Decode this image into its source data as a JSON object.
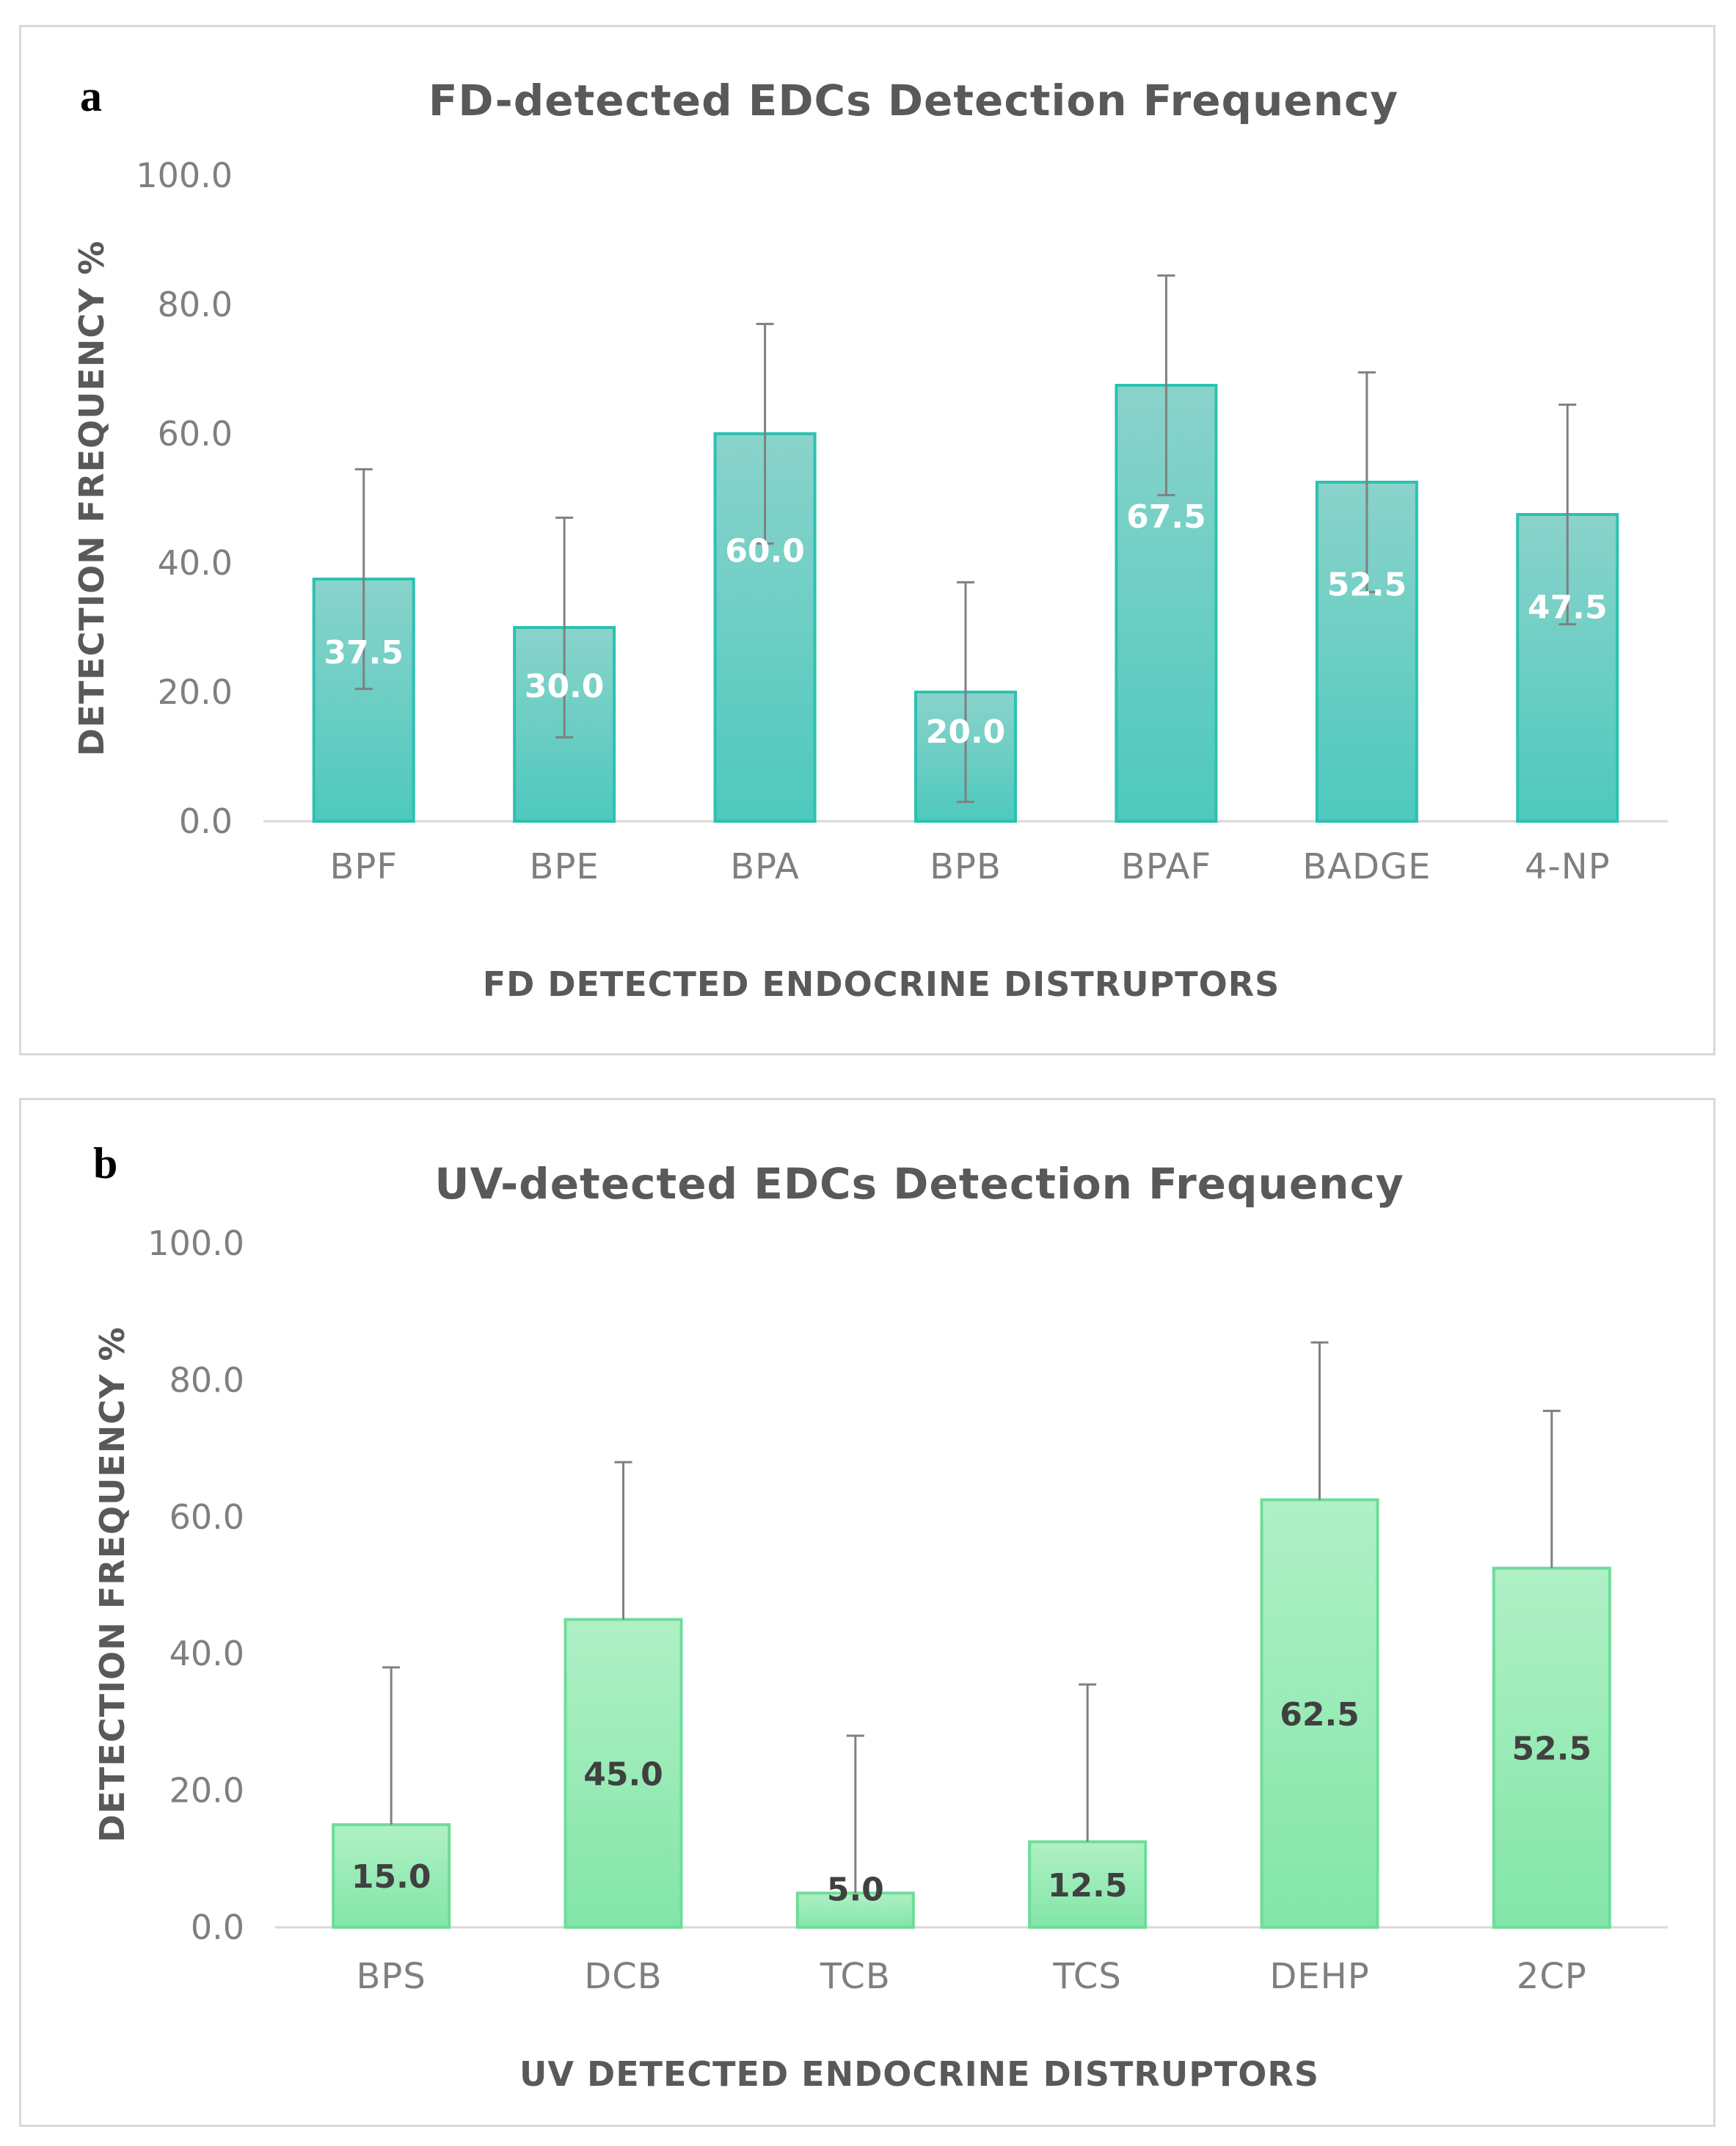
{
  "chart_data": [
    {
      "panel": "a",
      "type": "bar",
      "title": "FD-detected EDCs Detection Frequency",
      "xlabel": "FD DETECTED ENDOCRINE DISTRUPTORS",
      "ylabel": "DETECTION FREQUENCY %",
      "ylim": [
        0,
        100
      ],
      "yticks": [
        "0.0",
        "20.0",
        "40.0",
        "60.0",
        "80.0",
        "100.0"
      ],
      "categories": [
        "BPF",
        "BPE",
        "BPA",
        "BPB",
        "BPAF",
        "BADGE",
        "4-NP"
      ],
      "values": [
        37.5,
        30.0,
        60.0,
        20.0,
        67.5,
        52.5,
        47.5
      ],
      "value_labels": [
        "37.5",
        "30.0",
        "60.0",
        "20.0",
        "67.5",
        "52.5",
        "47.5"
      ],
      "error_plus": [
        17,
        17,
        17,
        17,
        17,
        17,
        17
      ],
      "error_minus": [
        17,
        17,
        17,
        17,
        17,
        17,
        17
      ],
      "gridlines": false,
      "colors": {
        "fill_top": "#8ad3cb",
        "fill_bottom": "#4ec9bd",
        "stroke": "#2cc1b2",
        "label": "#ffffff",
        "error": "#808080"
      }
    },
    {
      "panel": "b",
      "type": "bar",
      "title": "UV-detected EDCs Detection Frequency",
      "xlabel": "UV DETECTED ENDOCRINE DISTRUPTORS",
      "ylabel": "DETECTION FREQUENCY %",
      "ylim": [
        0,
        100
      ],
      "yticks": [
        "0.0",
        "20.0",
        "40.0",
        "60.0",
        "80.0",
        "100.0"
      ],
      "categories": [
        "BPS",
        "DCB",
        "TCB",
        "TCS",
        "DEHP",
        "2CP"
      ],
      "values": [
        15.0,
        45.0,
        5.0,
        12.5,
        62.5,
        52.5
      ],
      "value_labels": [
        "15.0",
        "45.0",
        "5.0",
        "12.5",
        "62.5",
        "52.5"
      ],
      "error_plus": [
        23,
        23,
        23,
        23,
        23,
        23
      ],
      "error_minus": [
        0,
        0,
        0,
        0,
        0,
        0
      ],
      "gridlines": false,
      "colors": {
        "fill_top": "#b0f0c6",
        "fill_bottom": "#82e6a7",
        "stroke": "#6fdc98",
        "label": "#404040",
        "error": "#808080"
      }
    }
  ],
  "panels": {
    "a": {
      "letter": "a"
    },
    "b": {
      "letter": "b"
    }
  }
}
